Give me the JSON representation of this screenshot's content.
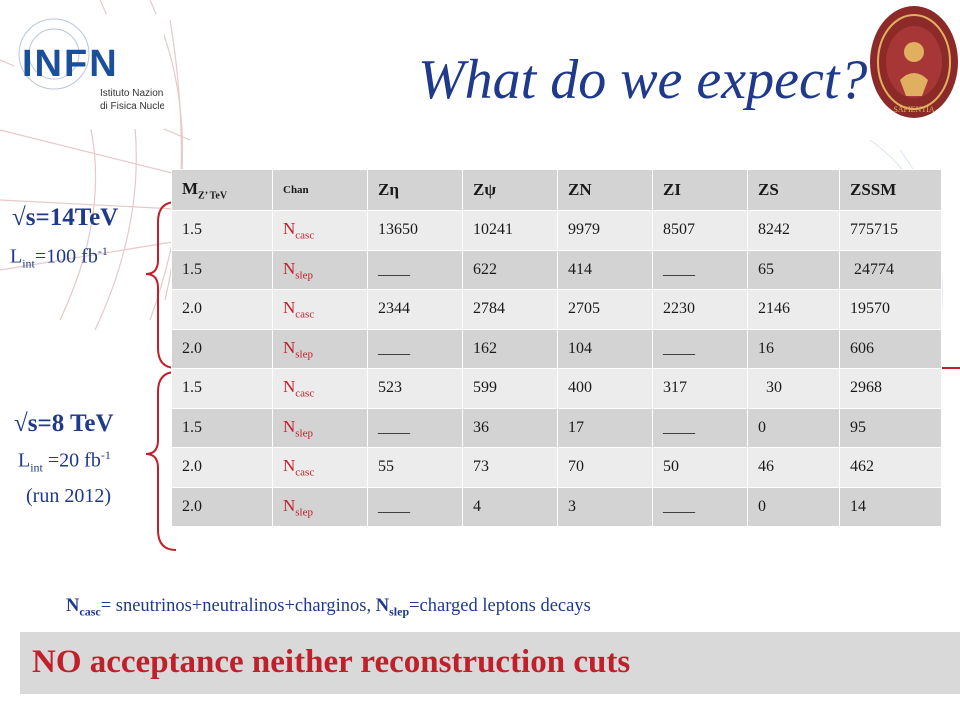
{
  "title": "What do we expect?",
  "logos": {
    "infn_text": "INFN",
    "infn_sub1": "Istituto Nazionale",
    "infn_sub2": "di Fisica Nucleare",
    "seal_text": "SAPIENTIA"
  },
  "group_14": {
    "energy": "√s=14TeV",
    "lumi_prefix": "L",
    "lumi_sub": "int",
    "lumi_value": "=100 fb",
    "lumi_sup": "-1"
  },
  "group_8": {
    "energy": "√s=8 TeV",
    "lumi_prefix": "L",
    "lumi_sub": "int",
    "lumi_value": " =20 fb",
    "lumi_sup": "-1",
    "run_note": "(run 2012)"
  },
  "table": {
    "header": {
      "mz_main": "M",
      "mz_sub": "Z’ TeV",
      "chan": "Chan",
      "cols": [
        "Zη",
        "Zψ",
        "ZN",
        "ZI",
        "ZS",
        "ZSSM"
      ]
    },
    "rows": [
      {
        "mass": "1.5",
        "chan_main": "N",
        "chan_sub": "casc",
        "values": [
          "13650",
          "10241",
          "9979",
          "8507",
          "8242",
          "775715"
        ]
      },
      {
        "mass": "1.5",
        "chan_main": "N",
        "chan_sub": "slep",
        "values": [
          "____",
          "622",
          "414",
          "____",
          "65",
          " 24774"
        ]
      },
      {
        "mass": "2.0",
        "chan_main": "N",
        "chan_sub": "casc",
        "values": [
          "2344",
          "2784",
          "2705",
          "2230",
          "2146",
          "19570"
        ]
      },
      {
        "mass": "2.0",
        "chan_main": "N",
        "chan_sub": "slep",
        "values": [
          "____",
          "162",
          "104",
          "____",
          "16",
          "606"
        ]
      },
      {
        "mass": "1.5",
        "chan_main": "N",
        "chan_sub": "casc",
        "values": [
          "523",
          "599",
          "400",
          "317",
          "  30",
          "2968"
        ]
      },
      {
        "mass": "1.5",
        "chan_main": "N",
        "chan_sub": "slep",
        "values": [
          "____",
          "36",
          "17",
          "____",
          "0",
          "95"
        ]
      },
      {
        "mass": "2.0",
        "chan_main": "N",
        "chan_sub": "casc",
        "values": [
          "55",
          "73",
          "70",
          "50",
          "46",
          "462"
        ]
      },
      {
        "mass": "2.0",
        "chan_main": "N",
        "chan_sub": "slep",
        "values": [
          "____",
          "4",
          "3",
          "____",
          "0",
          "14"
        ]
      }
    ]
  },
  "footnote": {
    "casc_main": "N",
    "casc_sub": "casc",
    "casc_def": "= sneutrinos+neutralinos+charginos, ",
    "slep_main": "N",
    "slep_sub": "slep",
    "slep_def": "=charged leptons decays"
  },
  "banner": "NO acceptance neither reconstruction cuts",
  "colors": {
    "title_blue": "#1f3a8a",
    "channel_red": "#c0202a",
    "row_dark": "#d3d3d3",
    "row_light": "#ececec",
    "banner_bg": "#d9d9d9"
  }
}
